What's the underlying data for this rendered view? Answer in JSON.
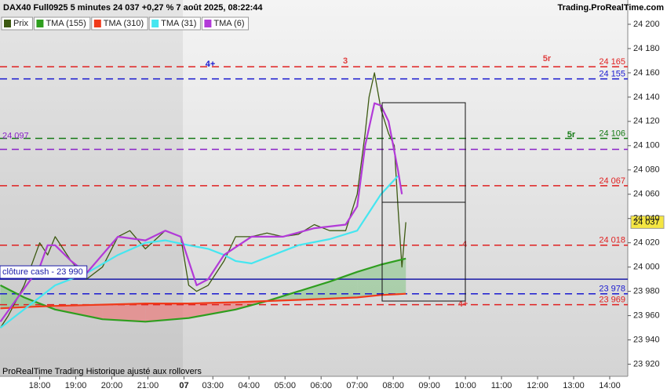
{
  "chart_data": {
    "type": "line",
    "title": "DAX40 Full0925 5 minutes 24 037 +0,27 % 7 août 2025, 08:22:44",
    "source": "Trading.ProRealTime.com",
    "footer": "ProRealTime Trading  Historique ajusté aux rollovers",
    "xlim": [
      -1.1,
      16.3
    ],
    "ylim": [
      23910,
      24220
    ],
    "xticks": [
      {
        "value": 0,
        "label": "18:00"
      },
      {
        "value": 1,
        "label": "19:00"
      },
      {
        "value": 2,
        "label": "20:00"
      },
      {
        "value": 3,
        "label": "21:00"
      },
      {
        "value": 4,
        "label": "07"
      },
      {
        "value": 4.8,
        "label": "03:00"
      },
      {
        "value": 5.8,
        "label": "04:00"
      },
      {
        "value": 6.8,
        "label": "05:00"
      },
      {
        "value": 7.8,
        "label": "06:00"
      },
      {
        "value": 8.8,
        "label": "07:00"
      },
      {
        "value": 9.8,
        "label": "08:00"
      },
      {
        "value": 10.8,
        "label": "09:00"
      },
      {
        "value": 11.8,
        "label": "10:00"
      },
      {
        "value": 12.8,
        "label": "11:00"
      },
      {
        "value": 13.8,
        "label": "12:00"
      },
      {
        "value": 14.8,
        "label": "13:00"
      },
      {
        "value": 15.8,
        "label": "14:00"
      }
    ],
    "yticks": [
      {
        "value": 23920,
        "label": "23 920"
      },
      {
        "value": 23940,
        "label": "23 940"
      },
      {
        "value": 23960,
        "label": "23 960"
      },
      {
        "value": 23980,
        "label": "23 980"
      },
      {
        "value": 24000,
        "label": "24 000"
      },
      {
        "value": 24020,
        "label": "24 020"
      },
      {
        "value": 24040,
        "label": "24 040"
      },
      {
        "value": 24060,
        "label": "24 060"
      },
      {
        "value": 24080,
        "label": "24 080"
      },
      {
        "value": 24100,
        "label": "24 100"
      },
      {
        "value": 24120,
        "label": "24 120"
      },
      {
        "value": 24140,
        "label": "24 140"
      },
      {
        "value": 24160,
        "label": "24 160"
      },
      {
        "value": 24180,
        "label": "24 180"
      },
      {
        "value": 24200,
        "label": "24 200"
      }
    ],
    "series": [
      {
        "name": "Prix",
        "color": "#3d5a12",
        "x": [
          -1.09,
          -0.87,
          -0.43,
          0,
          0.22,
          0.43,
          0.87,
          1.3,
          1.74,
          2.17,
          2.5,
          2.93,
          3.48,
          3.91,
          4.13,
          4.35,
          4.67,
          5.11,
          5.43,
          5.87,
          6.3,
          6.74,
          7.17,
          7.61,
          8.04,
          8.48,
          8.8,
          9.02,
          9.13,
          9.28,
          9.46,
          9.67,
          9.83,
          9.93,
          10.04,
          10.15
        ],
        "values": [
          23950,
          23960,
          23985,
          24020,
          24010,
          24025,
          24005,
          23990,
          24000,
          24025,
          24030,
          24015,
          24030,
          24025,
          23985,
          23980,
          23985,
          24005,
          24025,
          24025,
          24028,
          24025,
          24027,
          24035,
          24030,
          24030,
          24060,
          24110,
          24140,
          24160,
          24130,
          24110,
          24100,
          24050,
          24000,
          24037
        ]
      },
      {
        "name": "TMA (155)",
        "color": "#2e9e1e",
        "x": [
          -1.09,
          -0.43,
          0.43,
          1.74,
          2.93,
          4.13,
          5.43,
          6.3,
          7.17,
          8.04,
          8.8,
          9.46,
          10.15
        ],
        "values": [
          23985,
          23975,
          23965,
          23957,
          23955,
          23958,
          23965,
          23972,
          23980,
          23988,
          23996,
          24002,
          24007
        ]
      },
      {
        "name": "TMA (310)",
        "color": "#f03a1a",
        "x": [
          -1.09,
          -0.43,
          0.43,
          1.74,
          2.93,
          4.13,
          5.43,
          6.3,
          7.17,
          8.04,
          8.8,
          9.46,
          10.15
        ],
        "values": [
          23966,
          23967,
          23968,
          23969,
          23970,
          23970,
          23971,
          23972,
          23973,
          23974,
          23975,
          23977,
          23978
        ]
      },
      {
        "name": "TMA (31)",
        "color": "#45e6f0",
        "x": [
          -1.09,
          0.43,
          1.3,
          2.17,
          2.93,
          3.48,
          4.13,
          4.67,
          5.11,
          5.43,
          5.87,
          6.3,
          7.17,
          8.04,
          8.8,
          9.13,
          9.46,
          9.93
        ],
        "values": [
          23950,
          23985,
          23995,
          24010,
          24020,
          24022,
          24018,
          24015,
          24010,
          24005,
          24003,
          24008,
          24018,
          24023,
          24030,
          24045,
          24060,
          24075
        ]
      },
      {
        "name": "TMA (6)",
        "color": "#b23ad8",
        "x": [
          -1.09,
          0,
          0.22,
          0.43,
          0.87,
          1.3,
          2.17,
          2.93,
          3.48,
          3.91,
          4.35,
          4.67,
          5.11,
          5.87,
          6.74,
          7.61,
          8.48,
          8.8,
          9.02,
          9.28,
          9.46,
          9.67,
          9.93,
          10.04
        ],
        "values": [
          23955,
          24000,
          24018,
          24018,
          24005,
          23995,
          24025,
          24022,
          24030,
          24025,
          23985,
          23990,
          24010,
          24025,
          24025,
          24032,
          24035,
          24050,
          24100,
          24135,
          24133,
          24120,
          24080,
          24060
        ]
      }
    ],
    "levels": [
      {
        "value": 24165,
        "label": "24 165",
        "color": "#e02020",
        "style": "dashed",
        "label_side": "right"
      },
      {
        "value": 24155,
        "label": "24 155",
        "color": "#1a1ad0",
        "style": "dashed",
        "label_side": "right"
      },
      {
        "value": 24106,
        "label": "24 106",
        "color": "#157a15",
        "style": "dashed",
        "label_side": "right"
      },
      {
        "value": 24097,
        "label": "24 097",
        "color": "#8a22c8",
        "style": "dashed",
        "label_side": "left"
      },
      {
        "value": 24067,
        "label": "24 067",
        "color": "#e02020",
        "style": "dashed",
        "label_side": "right"
      },
      {
        "value": 24018,
        "label": "24 018",
        "color": "#e02020",
        "style": "dashed",
        "label_side": "right"
      },
      {
        "value": 23990,
        "label": "clôture cash -  23 990",
        "color": "#1a1aa8",
        "style": "solid",
        "label_side": "left"
      },
      {
        "value": 23978,
        "label": "23 978",
        "color": "#1a1ad0",
        "style": "dashed",
        "label_side": "right"
      },
      {
        "value": 23969,
        "label": "23 969",
        "color": "#e02020",
        "style": "dashed",
        "label_side": "right"
      }
    ],
    "last_price": {
      "value": 24037,
      "label": "24 037"
    },
    "annotations": [
      {
        "text": "4+",
        "color": "#1a1ad0"
      },
      {
        "text": "3",
        "color": "#e04040"
      },
      {
        "text": "5r",
        "color": "#e04040"
      },
      {
        "text": "5r",
        "color": "#157a15"
      },
      {
        "text": "4",
        "color": "#e04040"
      },
      {
        "text": "4+",
        "color": "#e04040"
      }
    ]
  }
}
